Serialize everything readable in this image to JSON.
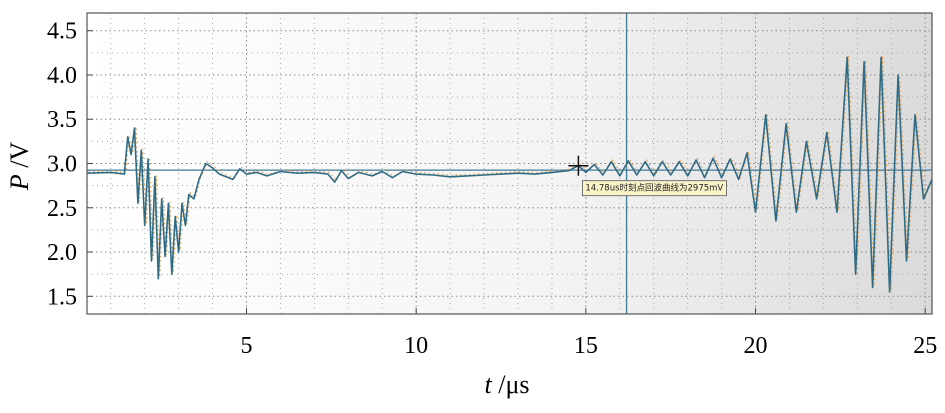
{
  "chart_data": {
    "type": "line",
    "xlabel_var": "t",
    "xlabel_unit": "/μs",
    "ylabel_var": "P",
    "ylabel_unit": "/V",
    "xlim": [
      0.3,
      25.2
    ],
    "ylim": [
      1.3,
      4.7
    ],
    "xticks": [
      5,
      10,
      15,
      20,
      25
    ],
    "yticks": [
      "1.5",
      "2.0",
      "2.5",
      "3.0",
      "3.5",
      "4.0",
      "4.5"
    ],
    "grid": true,
    "cursor": {
      "x": 16.2,
      "y": 2.925,
      "mark_x": 14.78,
      "mark_y": 2.975
    },
    "annotation": "14.78us时刻点回波曲线为2975mV",
    "series": [
      {
        "color": "#2e6b86",
        "points": [
          [
            0.3,
            2.89
          ],
          [
            1.0,
            2.9
          ],
          [
            1.4,
            2.88
          ],
          [
            1.5,
            3.3
          ],
          [
            1.6,
            3.1
          ],
          [
            1.7,
            3.4
          ],
          [
            1.8,
            2.55
          ],
          [
            1.9,
            3.15
          ],
          [
            2.0,
            2.3
          ],
          [
            2.1,
            3.05
          ],
          [
            2.2,
            1.9
          ],
          [
            2.3,
            2.85
          ],
          [
            2.4,
            1.7
          ],
          [
            2.5,
            2.6
          ],
          [
            2.6,
            1.95
          ],
          [
            2.7,
            2.55
          ],
          [
            2.8,
            1.75
          ],
          [
            2.9,
            2.4
          ],
          [
            3.0,
            2.0
          ],
          [
            3.1,
            2.55
          ],
          [
            3.2,
            2.3
          ],
          [
            3.3,
            2.65
          ],
          [
            3.45,
            2.6
          ],
          [
            3.6,
            2.82
          ],
          [
            3.8,
            3.0
          ],
          [
            4.0,
            2.95
          ],
          [
            4.2,
            2.88
          ],
          [
            4.4,
            2.85
          ],
          [
            4.6,
            2.82
          ],
          [
            4.8,
            2.94
          ],
          [
            5.0,
            2.88
          ],
          [
            5.3,
            2.9
          ],
          [
            5.6,
            2.86
          ],
          [
            6.0,
            2.91
          ],
          [
            6.5,
            2.89
          ],
          [
            7.0,
            2.9
          ],
          [
            7.4,
            2.88
          ],
          [
            7.6,
            2.79
          ],
          [
            7.8,
            2.92
          ],
          [
            8.0,
            2.83
          ],
          [
            8.3,
            2.9
          ],
          [
            8.7,
            2.86
          ],
          [
            9.0,
            2.91
          ],
          [
            9.3,
            2.84
          ],
          [
            9.6,
            2.91
          ],
          [
            10.0,
            2.88
          ],
          [
            10.5,
            2.87
          ],
          [
            11.0,
            2.85
          ],
          [
            11.5,
            2.86
          ],
          [
            12.0,
            2.87
          ],
          [
            12.5,
            2.88
          ],
          [
            13.0,
            2.89
          ],
          [
            13.5,
            2.88
          ],
          [
            14.0,
            2.9
          ],
          [
            14.5,
            2.92
          ],
          [
            14.78,
            2.975
          ],
          [
            15.0,
            2.9
          ],
          [
            15.25,
            2.99
          ],
          [
            15.5,
            2.87
          ],
          [
            15.75,
            3.02
          ],
          [
            16.0,
            2.86
          ],
          [
            16.25,
            3.03
          ],
          [
            16.5,
            2.87
          ],
          [
            16.75,
            3.02
          ],
          [
            17.0,
            2.86
          ],
          [
            17.25,
            3.02
          ],
          [
            17.5,
            2.87
          ],
          [
            17.75,
            3.02
          ],
          [
            18.0,
            2.86
          ],
          [
            18.25,
            3.04
          ],
          [
            18.5,
            2.84
          ],
          [
            18.75,
            3.06
          ],
          [
            19.0,
            2.84
          ],
          [
            19.25,
            3.05
          ],
          [
            19.5,
            2.82
          ],
          [
            19.75,
            3.12
          ],
          [
            20.0,
            2.45
          ],
          [
            20.3,
            3.55
          ],
          [
            20.6,
            2.35
          ],
          [
            20.9,
            3.45
          ],
          [
            21.2,
            2.45
          ],
          [
            21.5,
            3.25
          ],
          [
            21.8,
            2.6
          ],
          [
            22.1,
            3.35
          ],
          [
            22.4,
            2.45
          ],
          [
            22.7,
            4.2
          ],
          [
            22.95,
            1.75
          ],
          [
            23.2,
            4.15
          ],
          [
            23.45,
            1.6
          ],
          [
            23.7,
            4.2
          ],
          [
            23.95,
            1.55
          ],
          [
            24.2,
            4.0
          ],
          [
            24.45,
            1.9
          ],
          [
            24.7,
            3.55
          ],
          [
            24.95,
            2.6
          ],
          [
            25.2,
            2.82
          ]
        ]
      }
    ]
  }
}
